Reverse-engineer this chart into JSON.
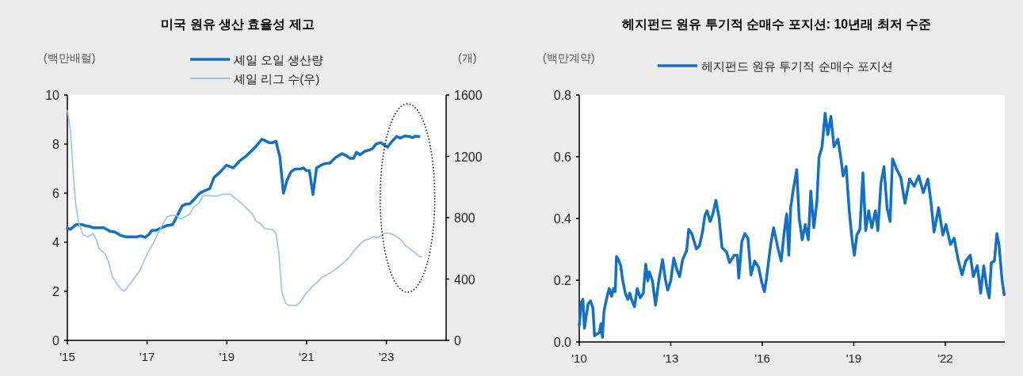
{
  "chart_data": [
    {
      "type": "line",
      "title": "미국 원유 생산 효율성 제고",
      "ylabel": "(백만배럴)",
      "y2label": "(개)",
      "legend": "top",
      "xlim": [
        2015,
        2024.5
      ],
      "xticks": [
        {
          "value": 2015,
          "label": "'15"
        },
        {
          "value": 2017,
          "label": "'17"
        },
        {
          "value": 2019,
          "label": "'19"
        },
        {
          "value": 2021,
          "label": "'21"
        },
        {
          "value": 2023,
          "label": "'23"
        }
      ],
      "ylim": [
        0,
        10
      ],
      "yticks": [
        0,
        2,
        4,
        6,
        8,
        10
      ],
      "y2lim": [
        0,
        1600
      ],
      "y2ticks": [
        0,
        400,
        800,
        1200,
        1600
      ],
      "series": [
        {
          "name": "셰일 오일 생산량",
          "color": "#1170c8",
          "x": [
            2015.0,
            2015.08,
            2015.22,
            2015.36,
            2015.46,
            2015.57,
            2015.64,
            2015.91,
            2016.08,
            2016.19,
            2016.33,
            2016.46,
            2016.74,
            2016.84,
            2016.95,
            2017.04,
            2017.12,
            2017.22,
            2017.36,
            2017.5,
            2017.64,
            2017.74,
            2017.88,
            2017.98,
            2018.07,
            2018.19,
            2018.31,
            2018.43,
            2018.57,
            2018.68,
            2018.85,
            2018.99,
            2019.16,
            2019.32,
            2019.5,
            2019.71,
            2019.88,
            2020.06,
            2020.15,
            2020.23,
            2020.33,
            2020.42,
            2020.51,
            2020.61,
            2020.71,
            2020.85,
            2020.92,
            2020.99,
            2021.07,
            2021.16,
            2021.25,
            2021.4,
            2021.51,
            2021.58,
            2021.72,
            2021.89,
            2021.99,
            2022.09,
            2022.18,
            2022.25,
            2022.34,
            2022.45,
            2022.58,
            2022.65,
            2022.75,
            2022.86,
            2023.03,
            2023.13,
            2023.26,
            2023.35,
            2023.46,
            2023.58,
            2023.65,
            2023.72,
            2023.82
          ],
          "values": [
            4.57,
            4.53,
            4.72,
            4.72,
            4.67,
            4.64,
            4.59,
            4.59,
            4.44,
            4.42,
            4.28,
            4.22,
            4.22,
            4.26,
            4.2,
            4.31,
            4.48,
            4.48,
            4.59,
            4.68,
            4.72,
            5.03,
            5.48,
            5.56,
            5.56,
            5.76,
            5.98,
            6.09,
            6.18,
            6.64,
            6.89,
            7.14,
            7.03,
            7.31,
            7.53,
            7.87,
            8.2,
            8.06,
            8.06,
            8.12,
            7.48,
            6.0,
            6.53,
            6.87,
            6.98,
            6.98,
            7.03,
            6.92,
            6.92,
            5.94,
            7.03,
            7.17,
            7.22,
            7.22,
            7.44,
            7.61,
            7.53,
            7.42,
            7.42,
            7.67,
            7.56,
            7.7,
            7.76,
            7.81,
            8.01,
            8.06,
            7.87,
            8.09,
            8.31,
            8.24,
            8.33,
            8.31,
            8.26,
            8.32,
            8.31
          ]
        },
        {
          "name": "셰일 리그 수(우)",
          "color": "#8fc3f0",
          "axis": "y2",
          "x": [
            2015.0,
            2015.08,
            2015.15,
            2015.21,
            2015.29,
            2015.39,
            2015.5,
            2015.57,
            2015.64,
            2015.72,
            2015.79,
            2015.95,
            2016.03,
            2016.12,
            2016.26,
            2016.4,
            2016.46,
            2016.6,
            2016.74,
            2016.81,
            2016.91,
            2017.04,
            2017.16,
            2017.26,
            2017.36,
            2017.5,
            2017.6,
            2017.74,
            2017.85,
            2017.95,
            2018.07,
            2018.16,
            2018.3,
            2018.4,
            2018.5,
            2018.64,
            2018.74,
            2018.88,
            2019.09,
            2019.19,
            2019.33,
            2019.47,
            2019.64,
            2019.73,
            2019.85,
            2019.95,
            2020.15,
            2020.23,
            2020.3,
            2020.38,
            2020.47,
            2020.55,
            2020.75,
            2020.85,
            2020.99,
            2021.16,
            2021.27,
            2021.4,
            2021.54,
            2021.68,
            2021.78,
            2021.92,
            2022.06,
            2022.2,
            2022.34,
            2022.44,
            2022.58,
            2022.68,
            2022.75,
            2022.86,
            2022.96,
            2023.06,
            2023.2,
            2023.34,
            2023.48,
            2023.58,
            2023.72,
            2023.82,
            2023.89
          ],
          "values": [
            1500,
            1365,
            1081,
            885,
            761,
            690,
            676,
            681,
            699,
            663,
            601,
            565,
            512,
            423,
            361,
            320,
            329,
            379,
            427,
            450,
            512,
            583,
            636,
            690,
            743,
            805,
            814,
            814,
            791,
            805,
            823,
            868,
            894,
            942,
            945,
            942,
            939,
            953,
            953,
            930,
            903,
            868,
            823,
            779,
            761,
            729,
            722,
            699,
            583,
            316,
            245,
            228,
            228,
            254,
            308,
            356,
            379,
            414,
            432,
            455,
            476,
            503,
            539,
            587,
            628,
            651,
            663,
            677,
            669,
            681,
            699,
            699,
            686,
            663,
            619,
            601,
            571,
            548,
            544
          ]
        }
      ]
    },
    {
      "type": "line",
      "title": "헤지펀드 원유 투기적 순매수 포지션: 10년래 최저 수준",
      "ylabel": "(백만계약)",
      "legend": "top",
      "xlim": [
        2010,
        2023.95
      ],
      "xticks": [
        {
          "value": 2010,
          "label": "'10"
        },
        {
          "value": 2013,
          "label": "'13"
        },
        {
          "value": 2016,
          "label": "'16"
        },
        {
          "value": 2019,
          "label": "'19"
        },
        {
          "value": 2022,
          "label": "'22"
        }
      ],
      "ylim": [
        0,
        0.8
      ],
      "yticks": [
        {
          "value": 0,
          "label": "0.0"
        },
        {
          "value": 0.2,
          "label": "0.2"
        },
        {
          "value": 0.4,
          "label": "0.4"
        },
        {
          "value": 0.6,
          "label": "0.6"
        },
        {
          "value": 0.8,
          "label": "0.8"
        }
      ],
      "series": [
        {
          "name": "헤지펀드 원유 투기적 순매수 포지션",
          "color": "#1170c8",
          "x": [
            2010.0,
            2010.07,
            2010.12,
            2010.17,
            2010.22,
            2010.29,
            2010.37,
            2010.45,
            2010.5,
            2010.57,
            2010.66,
            2010.71,
            2010.76,
            2010.81,
            2010.88,
            2010.98,
            2011.06,
            2011.12,
            2011.18,
            2011.22,
            2011.28,
            2011.36,
            2011.42,
            2011.51,
            2011.59,
            2011.66,
            2011.71,
            2011.81,
            2011.9,
            2012.0,
            2012.1,
            2012.18,
            2012.25,
            2012.3,
            2012.4,
            2012.5,
            2012.6,
            2012.73,
            2012.83,
            2012.9,
            2013.0,
            2013.1,
            2013.19,
            2013.29,
            2013.39,
            2013.52,
            2013.59,
            2013.69,
            2013.84,
            2013.94,
            2014.04,
            2014.12,
            2014.19,
            2014.29,
            2014.38,
            2014.48,
            2014.58,
            2014.68,
            2014.83,
            2014.93,
            2015.08,
            2015.18,
            2015.23,
            2015.33,
            2015.43,
            2015.53,
            2015.63,
            2015.75,
            2015.88,
            2015.97,
            2016.07,
            2016.14,
            2016.27,
            2016.37,
            2016.52,
            2016.62,
            2016.72,
            2016.8,
            2016.87,
            2016.93,
            2017.01,
            2017.13,
            2017.21,
            2017.31,
            2017.41,
            2017.51,
            2017.59,
            2017.69,
            2017.79,
            2017.86,
            2017.96,
            2018.06,
            2018.15,
            2018.25,
            2018.35,
            2018.48,
            2018.58,
            2018.65,
            2018.75,
            2018.85,
            2018.95,
            2019.02,
            2019.1,
            2019.2,
            2019.3,
            2019.39,
            2019.49,
            2019.59,
            2019.71,
            2019.79,
            2019.89,
            2019.99,
            2020.09,
            2020.19,
            2020.27,
            2020.39,
            2020.54,
            2020.68,
            2020.83,
            2020.98,
            2021.13,
            2021.28,
            2021.43,
            2021.53,
            2021.63,
            2021.78,
            2021.92,
            2022.02,
            2022.17,
            2022.29,
            2022.42,
            2022.55,
            2022.67,
            2022.82,
            2022.92,
            2023.05,
            2023.16,
            2023.26,
            2023.36,
            2023.44,
            2023.51,
            2023.61,
            2023.69,
            2023.76,
            2023.86,
            2023.93
          ],
          "values": [
            0.054,
            0.128,
            0.138,
            0.044,
            0.079,
            0.123,
            0.133,
            0.109,
            0.02,
            0.025,
            0.03,
            0.059,
            0.015,
            0.099,
            0.133,
            0.173,
            0.148,
            0.173,
            0.163,
            0.277,
            0.267,
            0.247,
            0.202,
            0.158,
            0.138,
            0.158,
            0.138,
            0.114,
            0.173,
            0.143,
            0.158,
            0.252,
            0.198,
            0.227,
            0.198,
            0.119,
            0.193,
            0.267,
            0.198,
            0.168,
            0.198,
            0.272,
            0.237,
            0.212,
            0.267,
            0.296,
            0.365,
            0.351,
            0.301,
            0.311,
            0.356,
            0.41,
            0.425,
            0.39,
            0.415,
            0.459,
            0.405,
            0.306,
            0.291,
            0.257,
            0.281,
            0.281,
            0.207,
            0.326,
            0.351,
            0.336,
            0.217,
            0.262,
            0.242,
            0.198,
            0.163,
            0.207,
            0.311,
            0.37,
            0.301,
            0.262,
            0.356,
            0.415,
            0.281,
            0.435,
            0.489,
            0.558,
            0.4,
            0.331,
            0.38,
            0.331,
            0.489,
            0.37,
            0.454,
            0.598,
            0.632,
            0.741,
            0.672,
            0.731,
            0.632,
            0.657,
            0.593,
            0.538,
            0.568,
            0.425,
            0.326,
            0.281,
            0.346,
            0.365,
            0.548,
            0.361,
            0.425,
            0.37,
            0.425,
            0.361,
            0.514,
            0.568,
            0.435,
            0.39,
            0.593,
            0.563,
            0.533,
            0.449,
            0.528,
            0.504,
            0.538,
            0.484,
            0.528,
            0.454,
            0.356,
            0.435,
            0.346,
            0.38,
            0.316,
            0.336,
            0.267,
            0.217,
            0.262,
            0.281,
            0.212,
            0.247,
            0.158,
            0.247,
            0.178,
            0.143,
            0.257,
            0.262,
            0.351,
            0.316,
            0.202,
            0.153
          ]
        }
      ]
    }
  ]
}
